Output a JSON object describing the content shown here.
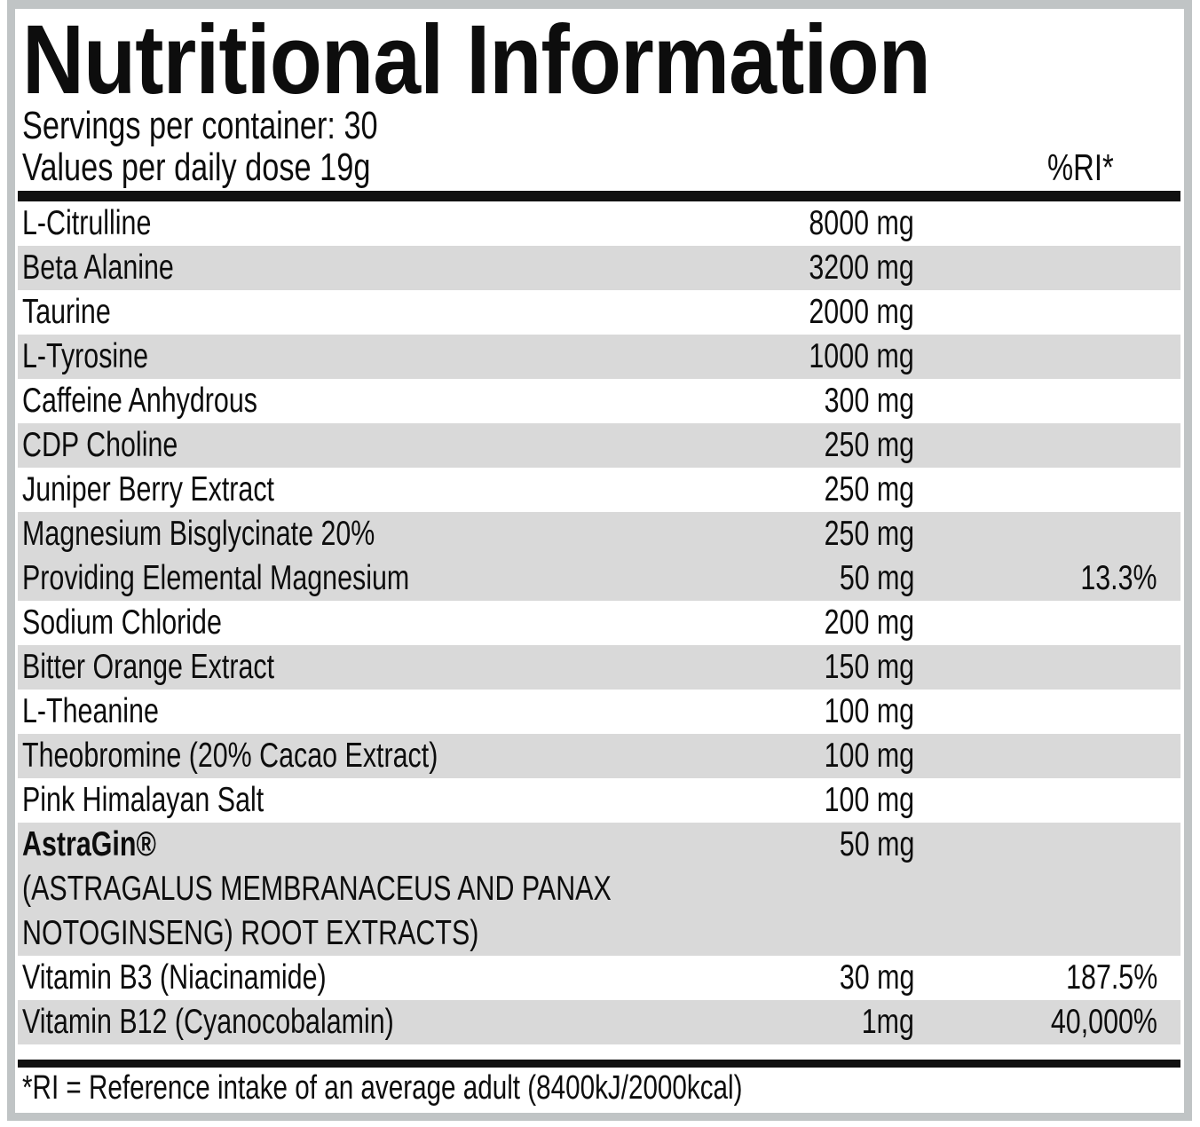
{
  "label": {
    "title": "Nutritional Information",
    "servings_line": "Servings per container: 30",
    "values_line": "Values per daily dose 19g",
    "ri_header": "%RI*",
    "footnote": "*RI = Reference intake of an average adult (8400kJ/2000kcal)"
  },
  "table": {
    "rows": [
      {
        "name": "L-Citrulline",
        "amount": "8000 mg",
        "ri": ""
      },
      {
        "name": "Beta Alanine",
        "amount": "3200 mg",
        "ri": ""
      },
      {
        "name": "Taurine",
        "amount": "2000 mg",
        "ri": ""
      },
      {
        "name": "L-Tyrosine",
        "amount": "1000 mg",
        "ri": ""
      },
      {
        "name": "Caffeine Anhydrous",
        "amount": "300 mg",
        "ri": ""
      },
      {
        "name": "CDP Choline",
        "amount": "250 mg",
        "ri": ""
      },
      {
        "name": "Juniper Berry Extract",
        "amount": "250 mg",
        "ri": ""
      },
      {
        "name": "Magnesium Bisglycinate 20%",
        "amount": "250 mg",
        "ri": ""
      },
      {
        "name": "Providing Elemental Magnesium",
        "amount": "50 mg",
        "ri": "13.3%"
      },
      {
        "name": "Sodium Chloride",
        "amount": "200 mg",
        "ri": ""
      },
      {
        "name": "Bitter Orange Extract",
        "amount": "150 mg",
        "ri": ""
      },
      {
        "name": "L-Theanine",
        "amount": "100 mg",
        "ri": ""
      },
      {
        "name": "Theobromine (20% Cacao Extract)",
        "amount": "100 mg",
        "ri": ""
      },
      {
        "name": "Pink Himalayan Salt",
        "amount": "100 mg",
        "ri": ""
      },
      {
        "name": "AstraGin®",
        "amount": "50 mg",
        "ri": ""
      },
      {
        "name": "(ASTRAGALUS MEMBRANACEUS AND PANAX",
        "amount": "",
        "ri": ""
      },
      {
        "name": "NOTOGINSENG) ROOT EXTRACTS)",
        "amount": "",
        "ri": ""
      },
      {
        "name": "Vitamin B3 (Niacinamide)",
        "amount": "30 mg",
        "ri": "187.5%"
      },
      {
        "name": "Vitamin B12 (Cyanocobalamin)",
        "amount": "1mg",
        "ri": "40,000%"
      }
    ]
  },
  "colors": {
    "row_shade": "#d9d9d9",
    "frame_gray": "#c0c4c5",
    "rule_black": "#111111",
    "text": "#0d0d0d"
  }
}
